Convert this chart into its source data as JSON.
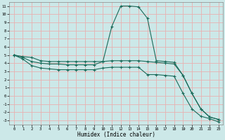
{
  "xlabel": "Humidex (Indice chaleur)",
  "bg_color": "#cce8e8",
  "grid_color": "#e8b0b0",
  "line_color": "#1a6b5a",
  "xlim": [
    -0.5,
    23.5
  ],
  "ylim": [
    -3.5,
    11.5
  ],
  "xticks": [
    0,
    1,
    2,
    3,
    4,
    5,
    6,
    7,
    8,
    9,
    10,
    11,
    12,
    13,
    14,
    15,
    16,
    17,
    18,
    19,
    20,
    21,
    22,
    23
  ],
  "yticks": [
    -3,
    -2,
    -1,
    0,
    1,
    2,
    3,
    4,
    5,
    6,
    7,
    8,
    9,
    10,
    11
  ],
  "line1_x": [
    0,
    1,
    2,
    3,
    4,
    5,
    6,
    7,
    8,
    9,
    10,
    11,
    12,
    13,
    14,
    15,
    16,
    17,
    18,
    19,
    20,
    21,
    22,
    23
  ],
  "line1_y": [
    5.0,
    4.8,
    4.7,
    4.3,
    4.2,
    4.2,
    4.2,
    4.2,
    4.2,
    4.2,
    4.2,
    8.5,
    11.0,
    11.0,
    10.9,
    9.5,
    4.3,
    4.2,
    4.1,
    2.5,
    0.3,
    -1.6,
    -2.6,
    -2.9
  ],
  "line2_x": [
    0,
    1,
    2,
    3,
    4,
    5,
    6,
    7,
    8,
    9,
    10,
    11,
    12,
    13,
    14,
    15,
    16,
    17,
    18,
    19,
    20,
    21,
    22,
    23
  ],
  "line2_y": [
    5.0,
    4.7,
    4.2,
    4.0,
    3.9,
    3.9,
    3.8,
    3.8,
    3.8,
    3.8,
    4.2,
    4.3,
    4.3,
    4.3,
    4.3,
    4.2,
    4.1,
    4.0,
    3.9,
    2.5,
    0.3,
    -1.6,
    -2.6,
    -2.9
  ],
  "line3_x": [
    0,
    1,
    2,
    3,
    4,
    5,
    6,
    7,
    8,
    9,
    10,
    11,
    12,
    13,
    14,
    15,
    16,
    17,
    18,
    19,
    20,
    21,
    22,
    23
  ],
  "line3_y": [
    5.0,
    4.5,
    3.7,
    3.4,
    3.3,
    3.2,
    3.2,
    3.2,
    3.2,
    3.2,
    3.4,
    3.5,
    3.5,
    3.5,
    3.5,
    2.6,
    2.6,
    2.5,
    2.4,
    0.3,
    -1.6,
    -2.5,
    -2.8,
    -3.2
  ]
}
